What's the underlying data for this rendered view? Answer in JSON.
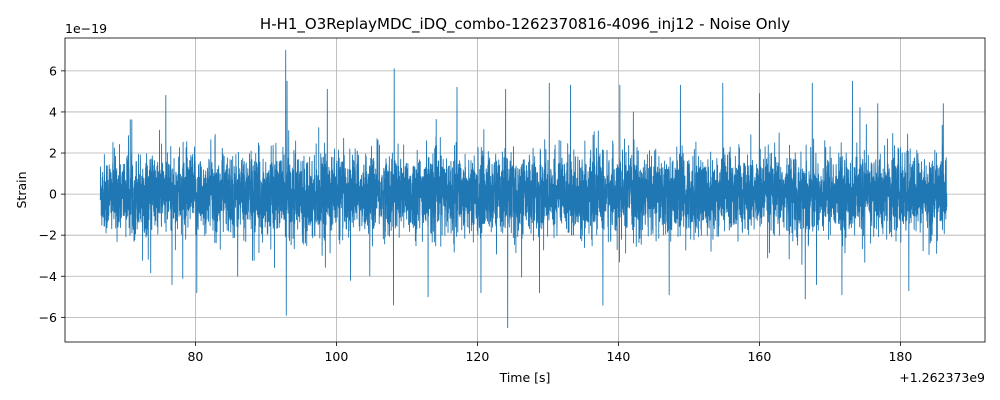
{
  "chart_data": {
    "type": "line",
    "title": "H-H1_O3ReplayMDC_iDQ_combo-1262370816-4096_inj12 - Noise Only",
    "xlabel": "Time [s]",
    "ylabel": "Strain",
    "x_offset_label": "+1.262373e9",
    "y_scale_label": "1e−19",
    "xlim": [
      61.5,
      192.0
    ],
    "ylim": [
      -7.2,
      7.6
    ],
    "x_ticks": [
      80,
      100,
      120,
      140,
      160,
      180
    ],
    "x_tick_labels": [
      "80",
      "100",
      "120",
      "140",
      "160",
      "180"
    ],
    "y_ticks": [
      -6,
      -4,
      -2,
      0,
      2,
      4,
      6
    ],
    "y_tick_labels": [
      "−6",
      "−4",
      "−2",
      "0",
      "2",
      "4",
      "6"
    ],
    "grid": true,
    "line_color": "#1f77b4",
    "series": [
      {
        "x_start": 66.5,
        "x_end": 186.6,
        "noise_sigma": 0.95,
        "peaks": [
          {
            "x": 92.8,
            "y": 7.0
          },
          {
            "x": 93.0,
            "y": 5.5
          },
          {
            "x": 92.9,
            "y": -5.9
          },
          {
            "x": 108.2,
            "y": 6.1
          },
          {
            "x": 108.1,
            "y": -5.4
          },
          {
            "x": 124.3,
            "y": -6.5
          },
          {
            "x": 124.0,
            "y": 5.1
          },
          {
            "x": 130.2,
            "y": 5.4
          },
          {
            "x": 117.1,
            "y": 5.2
          },
          {
            "x": 75.8,
            "y": 4.8
          },
          {
            "x": 78.2,
            "y": -4.1
          },
          {
            "x": 80.2,
            "y": -4.8
          },
          {
            "x": 98.7,
            "y": 5.1
          },
          {
            "x": 113.0,
            "y": -5.0
          },
          {
            "x": 120.5,
            "y": -4.8
          },
          {
            "x": 133.2,
            "y": 5.3
          },
          {
            "x": 140.2,
            "y": 5.3
          },
          {
            "x": 137.8,
            "y": -5.4
          },
          {
            "x": 147.2,
            "y": -4.9
          },
          {
            "x": 148.8,
            "y": 5.3
          },
          {
            "x": 154.8,
            "y": 5.4
          },
          {
            "x": 166.5,
            "y": -5.1
          },
          {
            "x": 167.5,
            "y": 5.4
          },
          {
            "x": 173.2,
            "y": 5.5
          },
          {
            "x": 171.7,
            "y": -4.9
          },
          {
            "x": 181.2,
            "y": -4.7
          },
          {
            "x": 128.8,
            "y": -4.8
          },
          {
            "x": 86.0,
            "y": -4.0
          },
          {
            "x": 102.0,
            "y": -4.2
          },
          {
            "x": 160.0,
            "y": 4.9
          }
        ]
      }
    ]
  }
}
